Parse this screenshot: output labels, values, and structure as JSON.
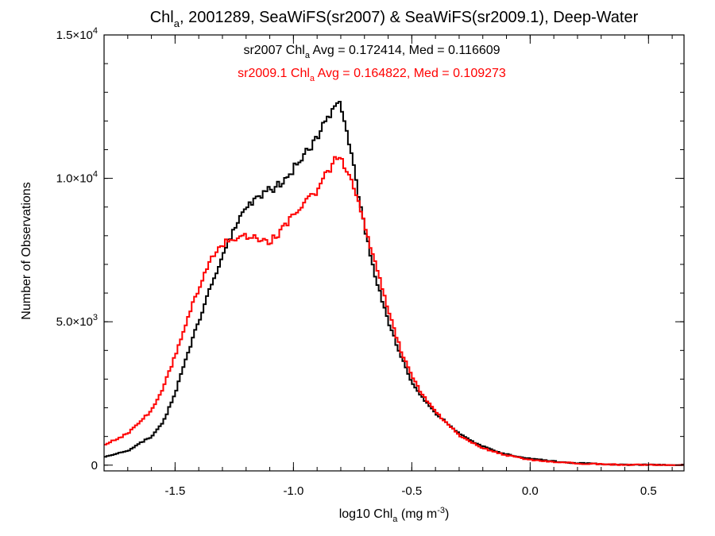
{
  "chart_data": {
    "type": "line",
    "title": {
      "prefix": "Chl",
      "sub": "a",
      "rest": ", 2001289, SeaWiFS(sr2007) & SeaWiFS(sr2009.1), Deep-Water"
    },
    "xlabel": {
      "prefix": "log10 Chl",
      "sub": "a",
      "mid": " (mg m",
      "sup": "-3",
      "end": ")"
    },
    "ylabel": "Number of Observations",
    "xlim": [
      -1.8,
      0.65
    ],
    "ylim": [
      -200,
      15000
    ],
    "x_ticks": [
      {
        "value": -1.5,
        "label": "-1.5"
      },
      {
        "value": -1.0,
        "label": "-1.0"
      },
      {
        "value": -0.5,
        "label": "-0.5"
      },
      {
        "value": 0.0,
        "label": "0.0"
      },
      {
        "value": 0.5,
        "label": "0.5"
      }
    ],
    "x_minor_step": 0.1,
    "y_ticks": [
      {
        "value": 0,
        "mant": "0",
        "exp": ""
      },
      {
        "value": 5000,
        "mant": "5.0×10",
        "exp": "3"
      },
      {
        "value": 10000,
        "mant": "1.0×10",
        "exp": "4"
      },
      {
        "value": 15000,
        "mant": "1.5×10",
        "exp": "4"
      }
    ],
    "y_minor_step": 1000,
    "annotations": [
      {
        "prefix": "sr2007 Chl",
        "sub": "a",
        "rest": " Avg = 0.172414, Med = 0.116609",
        "color": "#000000"
      },
      {
        "prefix": "sr2009.1 Chl",
        "sub": "a",
        "rest": " Avg = 0.164822, Med = 0.109273",
        "color": "#ff0000"
      }
    ],
    "series": [
      {
        "color": "#000000",
        "x": [
          -1.8,
          -1.7,
          -1.6,
          -1.55,
          -1.5,
          -1.45,
          -1.4,
          -1.35,
          -1.3,
          -1.25,
          -1.2,
          -1.15,
          -1.1,
          -1.05,
          -1.0,
          -0.95,
          -0.9,
          -0.85,
          -0.82,
          -0.8,
          -0.78,
          -0.75,
          -0.72,
          -0.7,
          -0.65,
          -0.6,
          -0.55,
          -0.5,
          -0.45,
          -0.4,
          -0.35,
          -0.3,
          -0.25,
          -0.2,
          -0.15,
          -0.1,
          0.0,
          0.1,
          0.2,
          0.3,
          0.4,
          0.5,
          0.65
        ],
        "y": [
          300,
          500,
          1000,
          1500,
          2500,
          3800,
          5000,
          6200,
          7300,
          8300,
          9000,
          9400,
          9600,
          9800,
          10300,
          10900,
          11400,
          12200,
          12700,
          12400,
          11800,
          10600,
          9200,
          8300,
          6500,
          5000,
          3900,
          2900,
          2300,
          1800,
          1450,
          1100,
          850,
          650,
          500,
          380,
          230,
          130,
          70,
          35,
          15,
          8,
          2
        ]
      },
      {
        "color": "#ff0000",
        "x": [
          -1.8,
          -1.7,
          -1.6,
          -1.55,
          -1.5,
          -1.45,
          -1.4,
          -1.35,
          -1.3,
          -1.25,
          -1.2,
          -1.15,
          -1.1,
          -1.05,
          -1.0,
          -0.95,
          -0.9,
          -0.85,
          -0.82,
          -0.8,
          -0.78,
          -0.75,
          -0.72,
          -0.7,
          -0.65,
          -0.6,
          -0.55,
          -0.5,
          -0.45,
          -0.4,
          -0.35,
          -0.3,
          -0.25,
          -0.2,
          -0.15,
          -0.1,
          0.0,
          0.1,
          0.2,
          0.3,
          0.4,
          0.5,
          0.65
        ],
        "y": [
          700,
          1100,
          1900,
          2700,
          3800,
          5000,
          6200,
          7100,
          7700,
          7900,
          8000,
          7900,
          7800,
          8200,
          8700,
          9200,
          9600,
          10300,
          10700,
          10700,
          10400,
          9900,
          9000,
          8400,
          6900,
          5400,
          4100,
          3100,
          2400,
          1850,
          1450,
          1050,
          800,
          600,
          460,
          340,
          190,
          110,
          60,
          30,
          12,
          6,
          2
        ]
      }
    ]
  }
}
